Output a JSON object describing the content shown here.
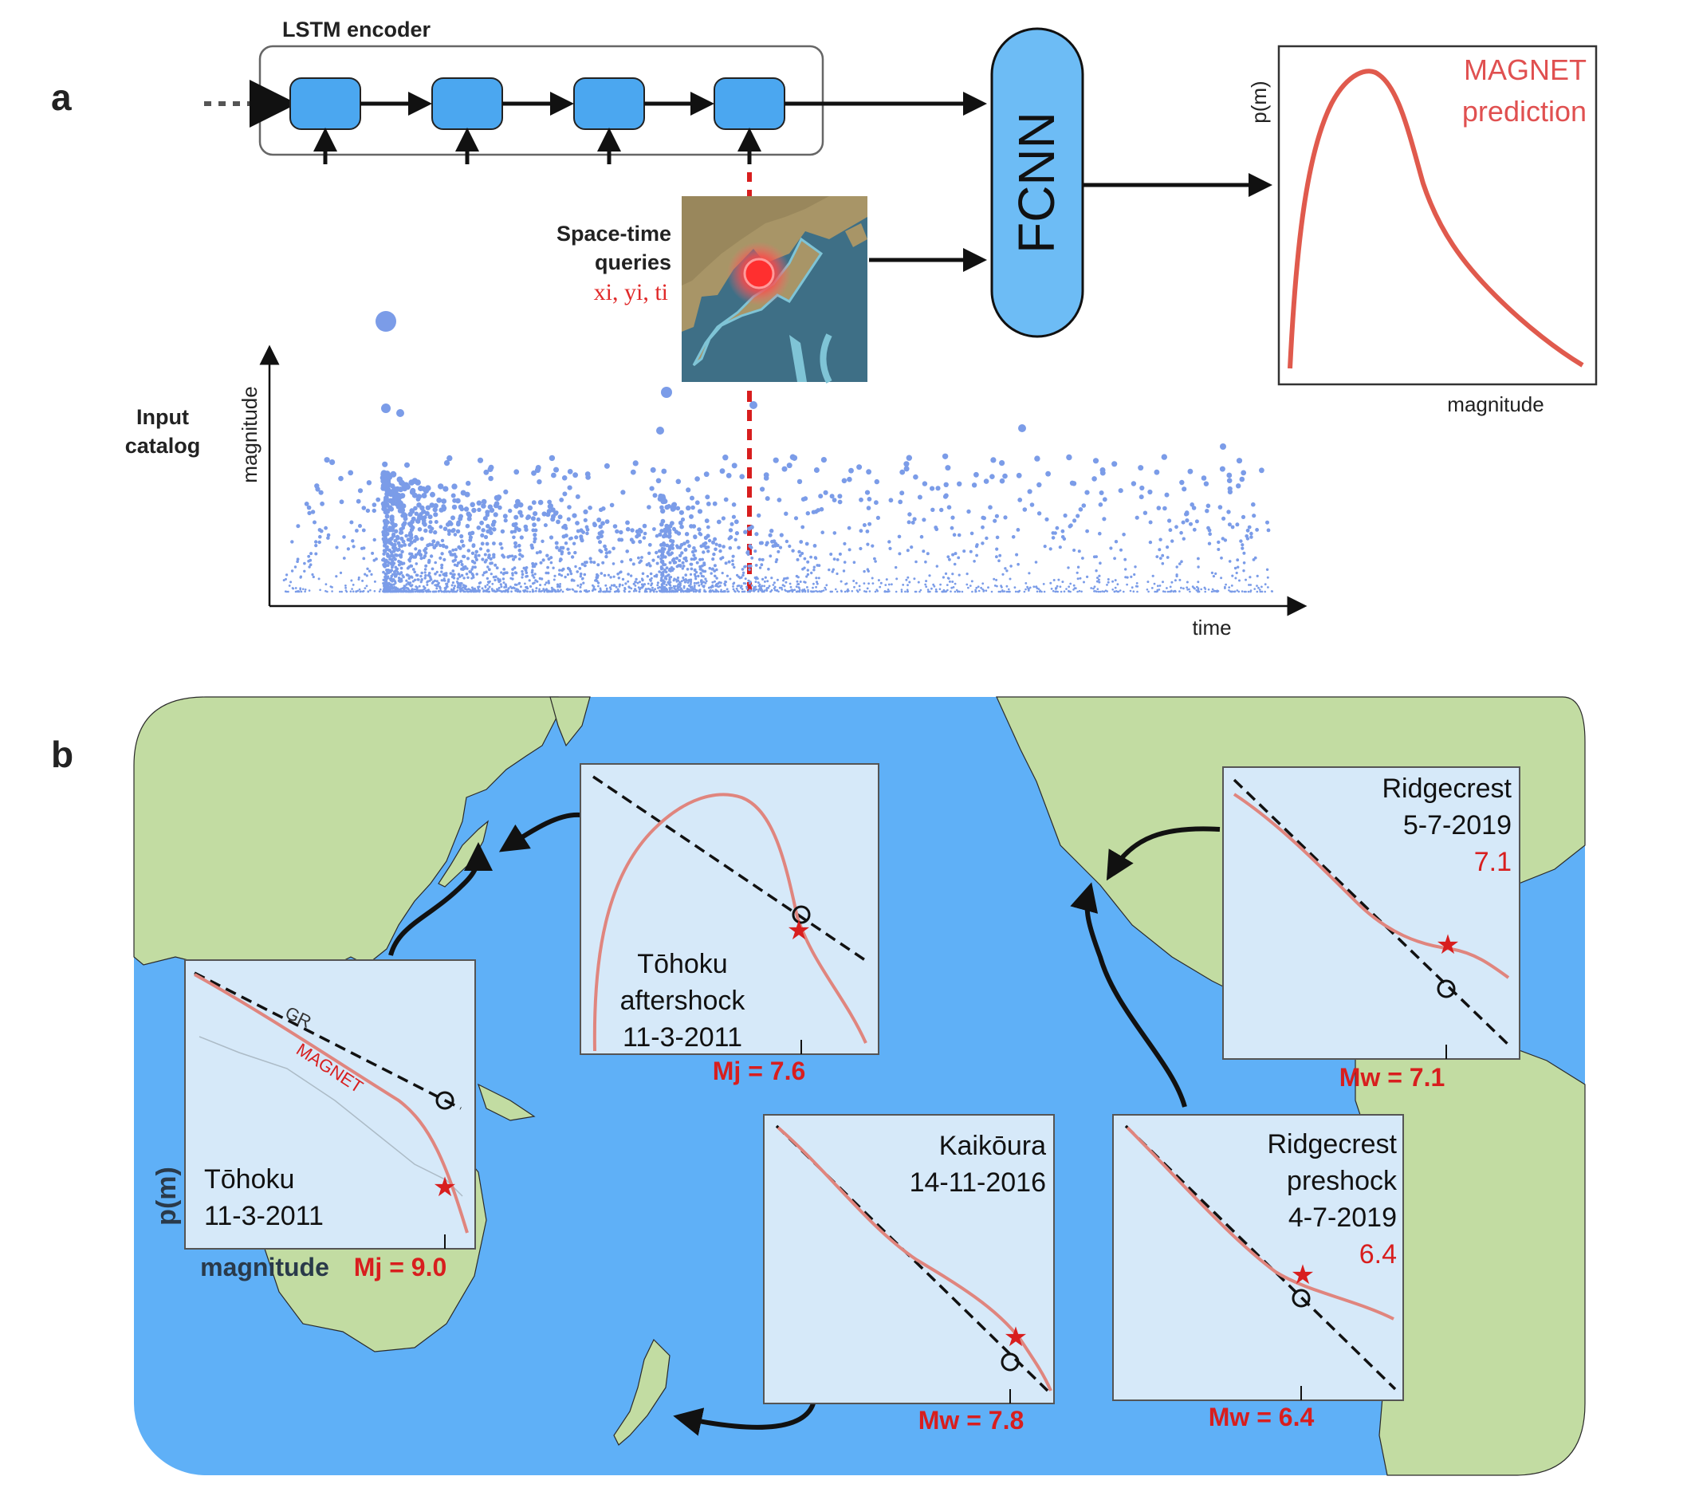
{
  "panel_a": {
    "letter": "a",
    "encoder_title": "LSTM encoder",
    "fcnn_label": "FCNN",
    "query_title_line1": "Space-time",
    "query_title_line2": "queries",
    "query_vars": "xi, yi, ti",
    "input_line1": "Input",
    "input_line2": "catalog",
    "catalog_ylabel": "magnitude",
    "catalog_xlabel": "time",
    "pred_ylabel": "p(m)",
    "pred_xlabel": "magnitude",
    "pred_title_line1": "MAGNET",
    "pred_title_line2": "prediction"
  },
  "panel_b": {
    "letter": "b",
    "insets": [
      {
        "id": "tohoku",
        "line1": "Tōhoku",
        "line2": "11-3-2011",
        "mag": "Mj = 9.0",
        "ylabel": "p(m)",
        "xlabel": "magnitude",
        "gr_label": "GR",
        "magnet_label": "MAGNET"
      },
      {
        "id": "tohoku-aftershock",
        "line1": "Tōhoku",
        "line2": "aftershock",
        "line3": "11-3-2011",
        "mag": "Mj = 7.6"
      },
      {
        "id": "kaikoura",
        "line1": "Kaikōura",
        "line2": "14-11-2016",
        "mag": "Mw = 7.8"
      },
      {
        "id": "ridgecrest-preshock",
        "line1": "Ridgecrest",
        "line2": "preshock",
        "line3": "4-7-2019",
        "red": "6.4",
        "mag": "Mw = 6.4"
      },
      {
        "id": "ridgecrest",
        "line1": "Ridgecrest",
        "line2": "5-7-2019",
        "red": "7.1",
        "mag": "Mw = 7.1"
      }
    ]
  },
  "colors": {
    "ocean": "#5fb0f7",
    "land": "#c2dca2",
    "lstm_cell": "#4ba7f0",
    "fcnn": "#6dbcf5",
    "scatter": "#7b9ce8",
    "magnet_curve": "#e0857e",
    "prediction_curve": "#e05a4d",
    "red": "#d81e1e",
    "inset_bg": "#d6e9f9"
  }
}
